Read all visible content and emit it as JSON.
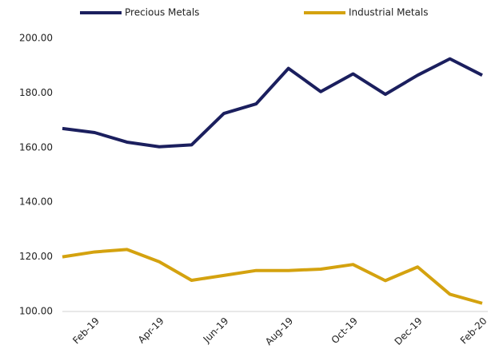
{
  "chart_data": {
    "type": "line",
    "categories": [
      null,
      "Feb-19",
      null,
      "Apr-19",
      null,
      "Jun-19",
      null,
      "Aug-19",
      null,
      "Oct-19",
      null,
      "Dec-19",
      null,
      "Feb-20"
    ],
    "series": [
      {
        "name": "Precious Metals",
        "color": "#1b1f5e",
        "values": [
          167,
          165.5,
          162,
          160.3,
          161,
          172.5,
          176,
          189,
          180.5,
          187,
          179.5,
          186.5,
          192.5,
          186.5
        ]
      },
      {
        "name": "Industrial Metals",
        "color": "#d4a20f",
        "values": [
          120,
          121.8,
          122.7,
          118.2,
          111.4,
          113.2,
          115,
          115,
          115.5,
          117.2,
          111.3,
          116.3,
          106.3,
          103
        ]
      }
    ],
    "ylim": [
      100,
      200
    ],
    "yticks": [
      {
        "value": 100,
        "label": "100.00"
      },
      {
        "value": 120,
        "label": "120.00"
      },
      {
        "value": 140,
        "label": "140.00"
      },
      {
        "value": 160,
        "label": "160.00"
      },
      {
        "value": 180,
        "label": "180.00"
      },
      {
        "value": 200,
        "label": "200.00"
      }
    ],
    "legend": "top",
    "grid": false
  }
}
